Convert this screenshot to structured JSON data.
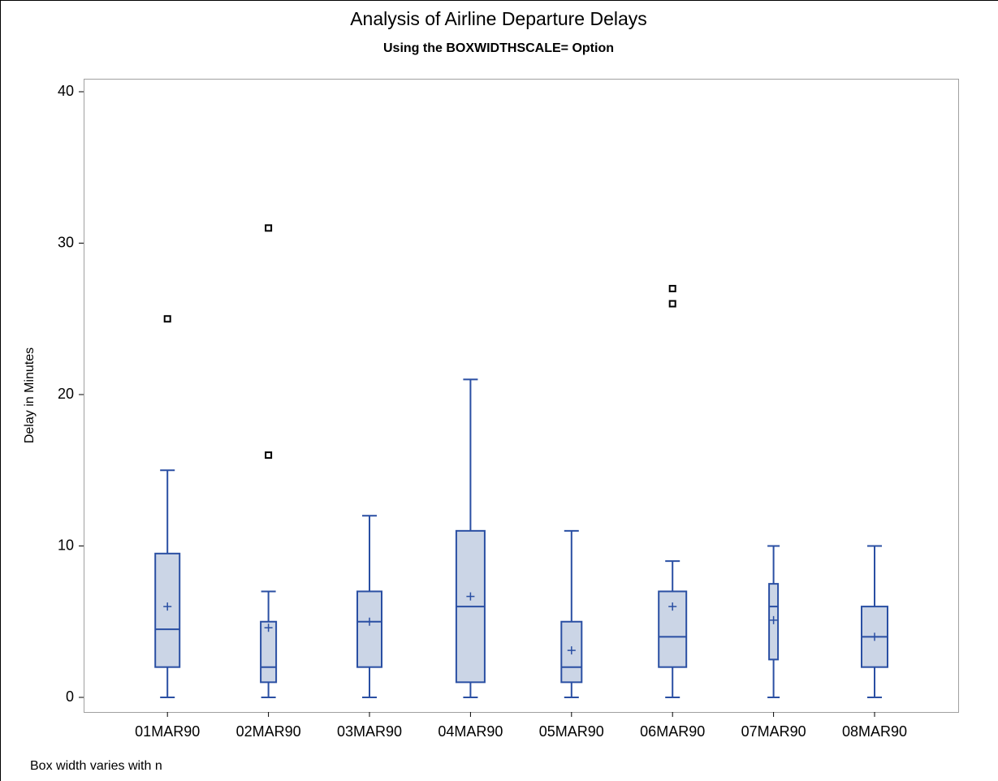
{
  "chart_data": {
    "type": "box",
    "title": "Analysis of Airline Departure Delays",
    "subtitle": "Using the BOXWIDTHSCALE= Option",
    "y_label": "Delay in Minutes",
    "footnote": "Box width varies with n",
    "categories": [
      "01MAR90",
      "02MAR90",
      "03MAR90",
      "04MAR90",
      "05MAR90",
      "06MAR90",
      "07MAR90",
      "08MAR90"
    ],
    "boxes": [
      {
        "min": 0,
        "q1": 2,
        "median": 4.5,
        "q3": 9.5,
        "max": 15,
        "mean": 6,
        "outliers": [
          25
        ]
      },
      {
        "min": 0,
        "q1": 1,
        "median": 2,
        "q3": 5,
        "max": 7,
        "mean": 4.6,
        "outliers": [
          16,
          31
        ]
      },
      {
        "min": 0,
        "q1": 2,
        "median": 5,
        "q3": 7,
        "max": 12,
        "mean": 5,
        "outliers": []
      },
      {
        "min": 0,
        "q1": 1,
        "median": 6,
        "q3": 11,
        "max": 21,
        "mean": 6.67,
        "outliers": []
      },
      {
        "min": 0,
        "q1": 1,
        "median": 2,
        "q3": 5,
        "max": 11,
        "mean": 3.1,
        "outliers": []
      },
      {
        "min": 0,
        "q1": 2,
        "median": 4,
        "q3": 7,
        "max": 9,
        "mean": 6,
        "outliers": [
          26,
          27
        ]
      },
      {
        "min": 0,
        "q1": 2.5,
        "median": 6,
        "q3": 7.5,
        "max": 10,
        "mean": 5.1,
        "outliers": []
      },
      {
        "min": 0,
        "q1": 2,
        "median": 4,
        "q3": 6,
        "max": 10,
        "mean": 4,
        "outliers": []
      }
    ],
    "color": "#2a4fa3",
    "box_fill": "#cbd5e6",
    "outlier_color": "#000000",
    "ylim": [
      0,
      40
    ],
    "yticks": [
      0,
      10,
      20,
      30,
      40
    ],
    "grid": false
  }
}
